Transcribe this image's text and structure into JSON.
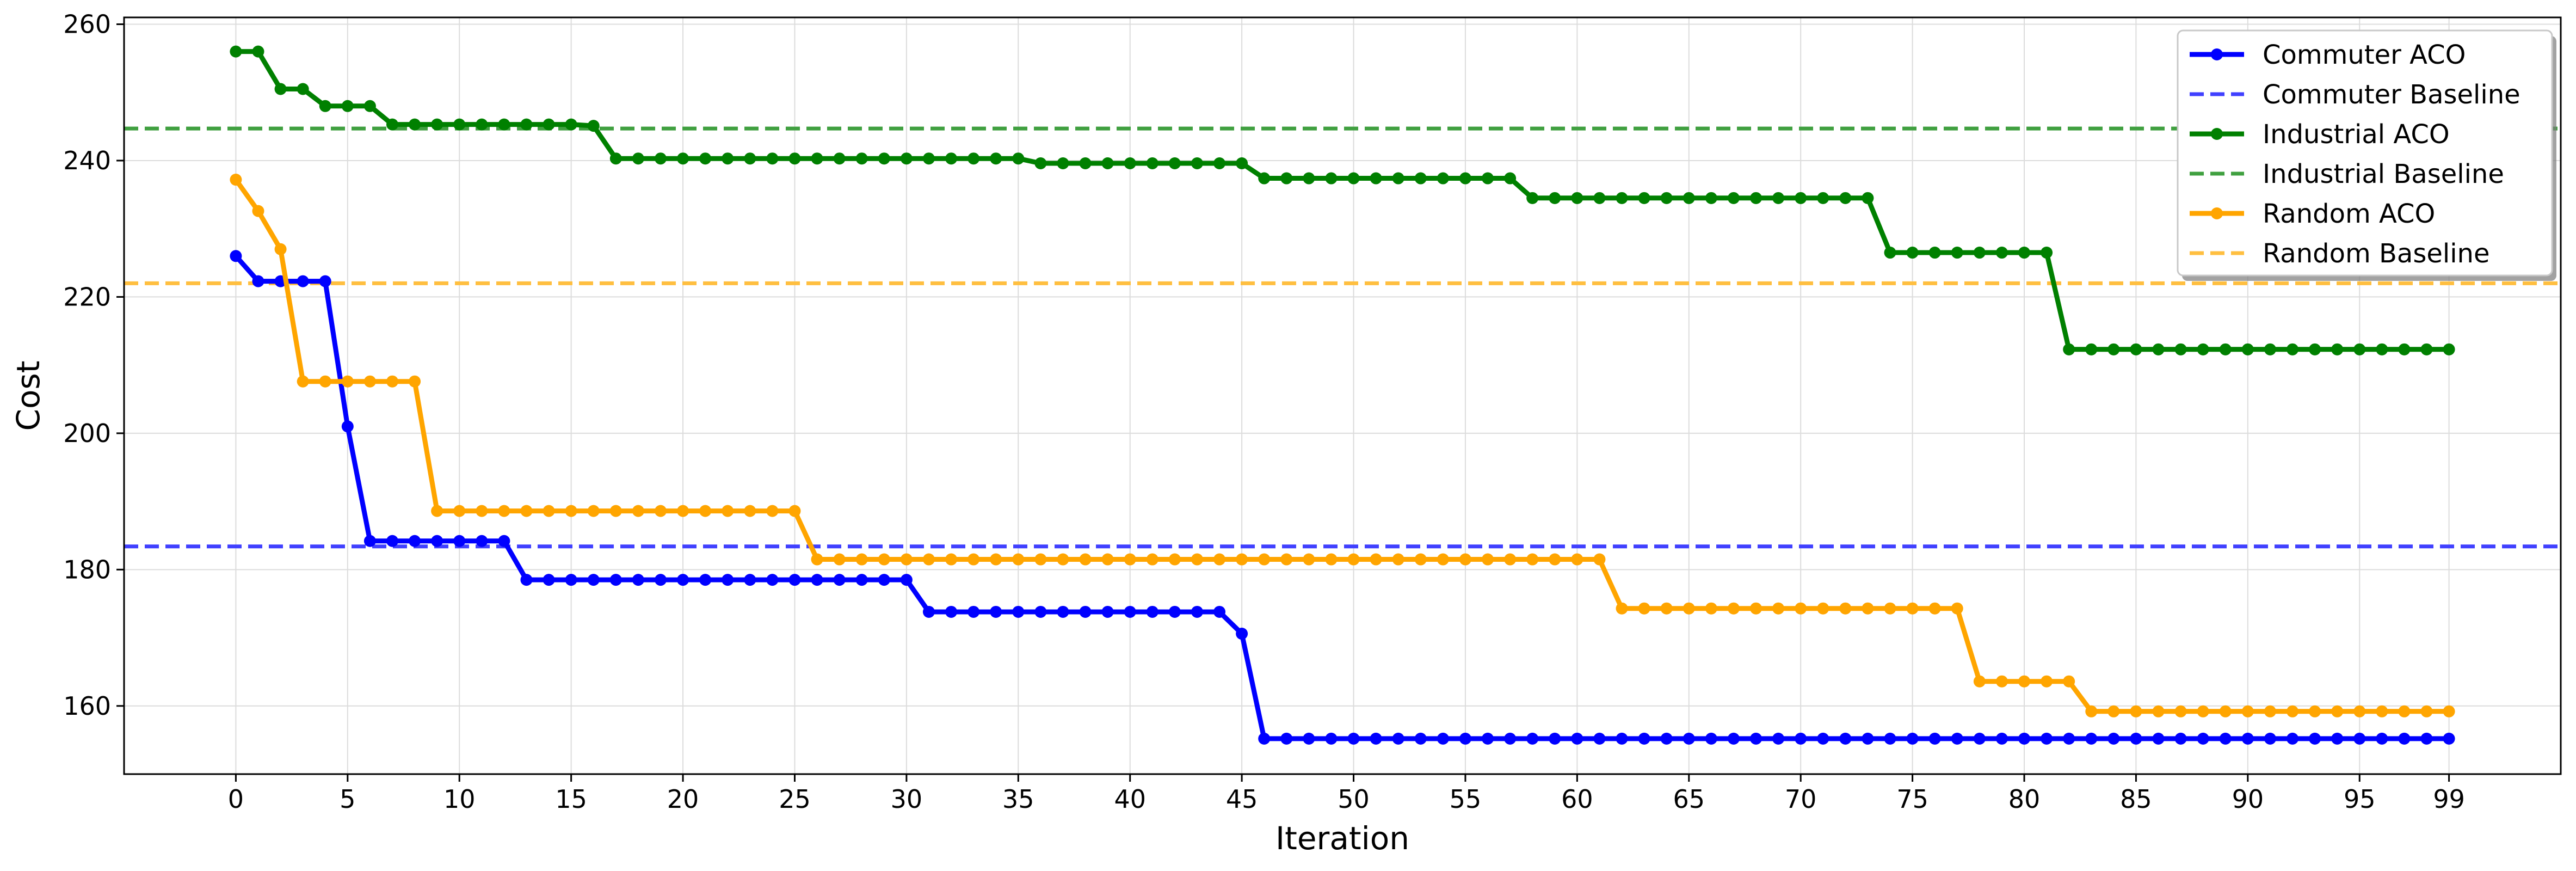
{
  "chart_data": {
    "type": "line",
    "title": "",
    "xlabel": "Iteration",
    "ylabel": "Cost",
    "xlim": [
      -5,
      104
    ],
    "ylim": [
      150,
      261
    ],
    "xticks": [
      0,
      5,
      10,
      15,
      20,
      25,
      30,
      35,
      40,
      45,
      50,
      55,
      60,
      65,
      70,
      75,
      80,
      85,
      90,
      95,
      99
    ],
    "yticks": [
      160,
      180,
      200,
      220,
      240,
      260
    ],
    "grid": true,
    "legend_position": "top-right",
    "series": [
      {
        "name": "Commuter ACO",
        "kind": "aco",
        "color": "#0000ff",
        "values": [
          226,
          222.3,
          222.3,
          222.3,
          222.3,
          201,
          184.2,
          184.2,
          184.2,
          184.2,
          184.2,
          184.2,
          184.2,
          178.5,
          178.5,
          178.5,
          178.5,
          178.5,
          178.5,
          178.5,
          178.5,
          178.5,
          178.5,
          178.5,
          178.5,
          178.5,
          178.5,
          178.5,
          178.5,
          178.5,
          178.5,
          173.8,
          173.8,
          173.8,
          173.8,
          173.8,
          173.8,
          173.8,
          173.8,
          173.8,
          173.8,
          173.8,
          173.8,
          173.8,
          173.8,
          170.6,
          155.2,
          155.2,
          155.2,
          155.2,
          155.2,
          155.2,
          155.2,
          155.2,
          155.2,
          155.2,
          155.2,
          155.2,
          155.2,
          155.2,
          155.2,
          155.2,
          155.2,
          155.2,
          155.2,
          155.2,
          155.2,
          155.2,
          155.2,
          155.2,
          155.2,
          155.2,
          155.2,
          155.2,
          155.2,
          155.2,
          155.2,
          155.2,
          155.2,
          155.2,
          155.2,
          155.2,
          155.2,
          155.2,
          155.2,
          155.2,
          155.2,
          155.2,
          155.2,
          155.2,
          155.2,
          155.2,
          155.2,
          155.2,
          155.2,
          155.2,
          155.2,
          155.2,
          155.2,
          155.2
        ]
      },
      {
        "name": "Commuter Baseline",
        "kind": "baseline",
        "color": "#4040ff",
        "value": 183.4
      },
      {
        "name": "Industrial ACO",
        "kind": "aco",
        "color": "#008000",
        "values": [
          256,
          256,
          250.5,
          250.5,
          248,
          248,
          248,
          245.3,
          245.3,
          245.3,
          245.3,
          245.3,
          245.3,
          245.3,
          245.3,
          245.3,
          245.1,
          240.3,
          240.3,
          240.3,
          240.3,
          240.3,
          240.3,
          240.3,
          240.3,
          240.3,
          240.3,
          240.3,
          240.3,
          240.3,
          240.3,
          240.3,
          240.3,
          240.3,
          240.3,
          240.3,
          239.6,
          239.6,
          239.6,
          239.6,
          239.6,
          239.6,
          239.6,
          239.6,
          239.6,
          239.6,
          237.4,
          237.4,
          237.4,
          237.4,
          237.4,
          237.4,
          237.4,
          237.4,
          237.4,
          237.4,
          237.4,
          237.4,
          234.5,
          234.5,
          234.5,
          234.5,
          234.5,
          234.5,
          234.5,
          234.5,
          234.5,
          234.5,
          234.5,
          234.5,
          234.5,
          234.5,
          234.5,
          234.5,
          226.5,
          226.5,
          226.5,
          226.5,
          226.5,
          226.5,
          226.5,
          226.5,
          212.3,
          212.3,
          212.3,
          212.3,
          212.3,
          212.3,
          212.3,
          212.3,
          212.3,
          212.3,
          212.3,
          212.3,
          212.3,
          212.3,
          212.3,
          212.3,
          212.3,
          212.3
        ]
      },
      {
        "name": "Industrial Baseline",
        "kind": "baseline",
        "color": "#40a040",
        "value": 244.7
      },
      {
        "name": "Random ACO",
        "kind": "aco",
        "color": "#ffa500",
        "values": [
          237.2,
          232.6,
          227,
          207.6,
          207.6,
          207.6,
          207.6,
          207.6,
          207.6,
          188.6,
          188.6,
          188.6,
          188.6,
          188.6,
          188.6,
          188.6,
          188.6,
          188.6,
          188.6,
          188.6,
          188.6,
          188.6,
          188.6,
          188.6,
          188.6,
          188.6,
          181.5,
          181.5,
          181.5,
          181.5,
          181.5,
          181.5,
          181.5,
          181.5,
          181.5,
          181.5,
          181.5,
          181.5,
          181.5,
          181.5,
          181.5,
          181.5,
          181.5,
          181.5,
          181.5,
          181.5,
          181.5,
          181.5,
          181.5,
          181.5,
          181.5,
          181.5,
          181.5,
          181.5,
          181.5,
          181.5,
          181.5,
          181.5,
          181.5,
          181.5,
          181.5,
          181.5,
          174.3,
          174.3,
          174.3,
          174.3,
          174.3,
          174.3,
          174.3,
          174.3,
          174.3,
          174.3,
          174.3,
          174.3,
          174.3,
          174.3,
          174.3,
          174.3,
          163.6,
          163.6,
          163.6,
          163.6,
          163.6,
          159.2,
          159.2,
          159.2,
          159.2,
          159.2,
          159.2,
          159.2,
          159.2,
          159.2,
          159.2,
          159.2,
          159.2,
          159.2,
          159.2,
          159.2,
          159.2,
          159.2
        ]
      },
      {
        "name": "Random Baseline",
        "kind": "baseline",
        "color": "#ffbf40",
        "value": 222
      }
    ]
  }
}
